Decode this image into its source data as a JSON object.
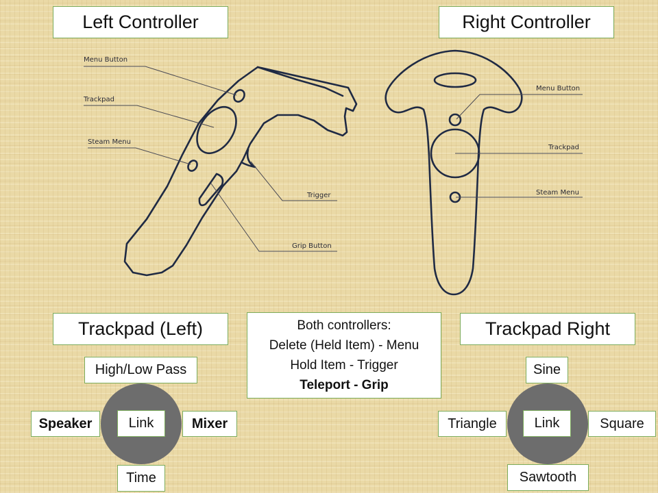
{
  "titles": {
    "left_controller": "Left Controller",
    "right_controller": "Right Controller",
    "trackpad_left": "Trackpad (Left)",
    "trackpad_right": "Trackpad Right"
  },
  "left_callouts": {
    "menu_button": "Menu Button",
    "trackpad": "Trackpad",
    "steam_menu": "Steam Menu",
    "trigger": "Trigger",
    "grip_button": "Grip Button"
  },
  "right_callouts": {
    "menu_button": "Menu Button",
    "trackpad": "Trackpad",
    "steam_menu": "Steam Menu"
  },
  "both_controllers": {
    "heading": "Both controllers:",
    "line1": "Delete (Held Item) - Menu",
    "line2": "Hold Item - Trigger",
    "line3": "Teleport - Grip"
  },
  "trackpad_left": {
    "top": "High/Low Pass",
    "left": "Speaker",
    "center": "Link",
    "right": "Mixer",
    "bottom": "Time"
  },
  "trackpad_right": {
    "top": "Sine",
    "left": "Triangle",
    "center": "Link",
    "right": "Square",
    "bottom": "Sawtooth"
  },
  "colors": {
    "background": "#ead9a6",
    "box_border": "#7bab5a",
    "trackpad_disc": "#6d6d6d",
    "outline": "#1f2a44"
  }
}
